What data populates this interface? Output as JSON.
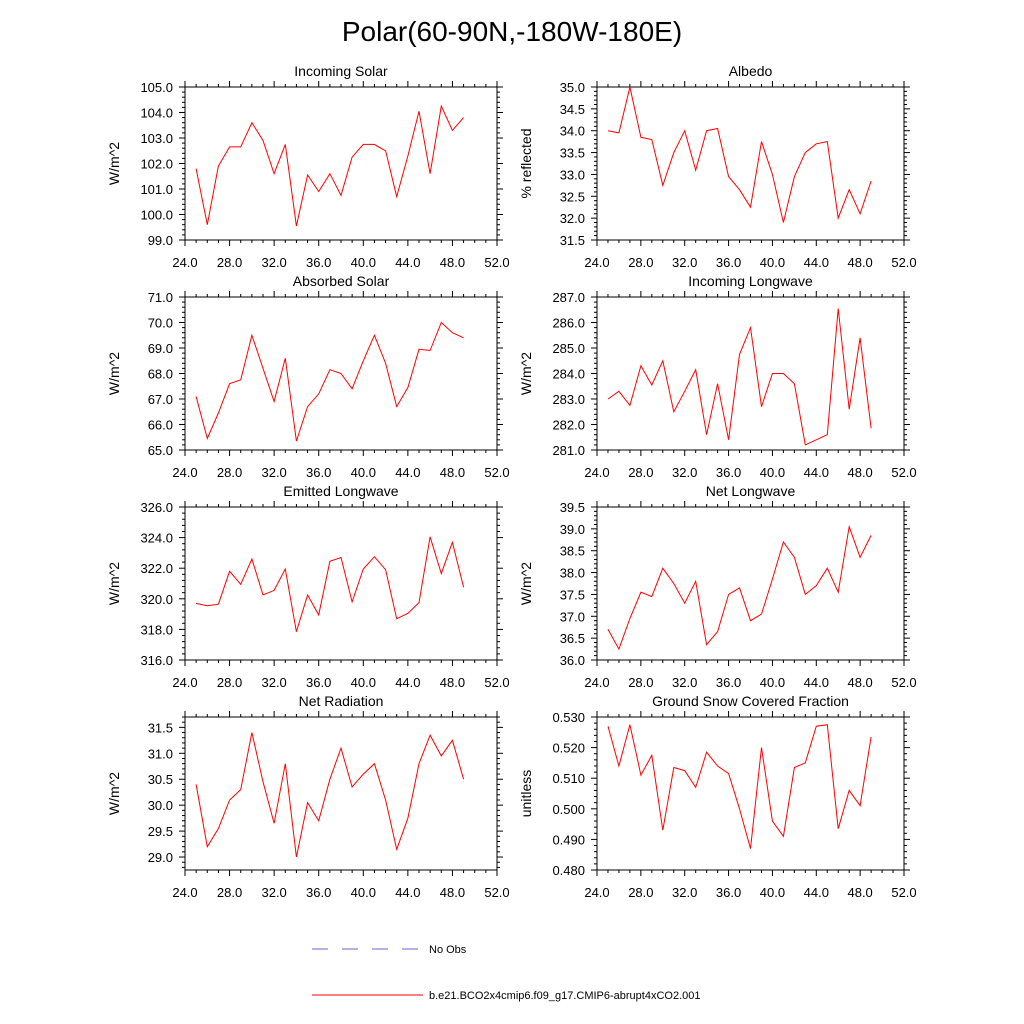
{
  "figure": {
    "title": "Polar(60-90N,-180W-180E)",
    "legend": [
      {
        "label": "No Obs",
        "color": "#6666cc",
        "dash": "dashed"
      },
      {
        "label": "b.e21.BCO2x4cmip6.f09_g17.CMIP6-abrupt4xCO2.001",
        "color": "#ff0000",
        "dash": "solid"
      }
    ],
    "series_color": "#ff0000"
  },
  "chart_data": [
    {
      "id": "incoming-solar",
      "type": "line",
      "title": "Incoming Solar",
      "ylabel": "W/m^2",
      "xlabel": "",
      "xlim": [
        24,
        52
      ],
      "ylim": [
        99,
        105
      ],
      "xticks": [
        24,
        28,
        32,
        36,
        40,
        44,
        48,
        52
      ],
      "xtick_labels": [
        "24.0",
        "28.0",
        "32.0",
        "36.0",
        "40.0",
        "44.0",
        "48.0",
        "52.0"
      ],
      "yticks": [
        99,
        100,
        101,
        102,
        103,
        104,
        105
      ],
      "ytick_labels": [
        "99.0",
        "100.0",
        "101.0",
        "102.0",
        "103.0",
        "104.0",
        "105.0"
      ],
      "series": [
        {
          "name": "b.e21.BCO2x4cmip6.f09_g17.CMIP6-abrupt4xCO2.001",
          "x": [
            25,
            26,
            27,
            28,
            29,
            30,
            31,
            32,
            33,
            34,
            35,
            36,
            37,
            38,
            39,
            40,
            41,
            42,
            43,
            44,
            45,
            46,
            47,
            48,
            49
          ],
          "y": [
            101.8,
            99.6,
            101.9,
            102.65,
            102.65,
            103.6,
            102.9,
            101.6,
            102.75,
            99.55,
            101.55,
            100.9,
            101.6,
            100.75,
            102.25,
            102.75,
            102.75,
            102.5,
            100.7,
            102.3,
            104.05,
            101.6,
            104.25,
            103.3,
            103.8
          ]
        }
      ]
    },
    {
      "id": "albedo",
      "type": "line",
      "title": "Albedo",
      "ylabel": "% reflected",
      "xlabel": "",
      "xlim": [
        24,
        52
      ],
      "ylim": [
        31.5,
        35.0
      ],
      "xticks": [
        24,
        28,
        32,
        36,
        40,
        44,
        48,
        52
      ],
      "xtick_labels": [
        "24.0",
        "28.0",
        "32.0",
        "36.0",
        "40.0",
        "44.0",
        "48.0",
        "52.0"
      ],
      "yticks": [
        31.5,
        32.0,
        32.5,
        33.0,
        33.5,
        34.0,
        34.5,
        35.0
      ],
      "ytick_labels": [
        "31.5",
        "32.0",
        "32.5",
        "33.0",
        "33.5",
        "34.0",
        "34.5",
        "35.0"
      ],
      "series": [
        {
          "name": "b.e21.BCO2x4cmip6.f09_g17.CMIP6-abrupt4xCO2.001",
          "x": [
            25,
            26,
            27,
            28,
            29,
            30,
            31,
            32,
            33,
            34,
            35,
            36,
            37,
            38,
            39,
            40,
            41,
            42,
            43,
            44,
            45,
            46,
            47,
            48,
            49
          ],
          "y": [
            34.0,
            33.95,
            35.0,
            33.85,
            33.8,
            32.75,
            33.5,
            34.0,
            33.1,
            34.0,
            34.05,
            32.95,
            32.65,
            32.25,
            33.75,
            33.0,
            31.9,
            32.95,
            33.5,
            33.7,
            33.75,
            32.0,
            32.65,
            32.1,
            32.85
          ]
        }
      ]
    },
    {
      "id": "absorbed-solar",
      "type": "line",
      "title": "Absorbed Solar",
      "ylabel": "W/m^2",
      "xlabel": "",
      "xlim": [
        24,
        52
      ],
      "ylim": [
        65,
        71
      ],
      "xticks": [
        24,
        28,
        32,
        36,
        40,
        44,
        48,
        52
      ],
      "xtick_labels": [
        "24.0",
        "28.0",
        "32.0",
        "36.0",
        "40.0",
        "44.0",
        "48.0",
        "52.0"
      ],
      "yticks": [
        65,
        66,
        67,
        68,
        69,
        70,
        71
      ],
      "ytick_labels": [
        "65.0",
        "66.0",
        "67.0",
        "68.0",
        "69.0",
        "70.0",
        "71.0"
      ],
      "series": [
        {
          "name": "b.e21.BCO2x4cmip6.f09_g17.CMIP6-abrupt4xCO2.001",
          "x": [
            25,
            26,
            27,
            28,
            29,
            30,
            31,
            32,
            33,
            34,
            35,
            36,
            37,
            38,
            39,
            40,
            41,
            42,
            43,
            44,
            45,
            46,
            47,
            48,
            49
          ],
          "y": [
            67.1,
            65.45,
            66.45,
            67.6,
            67.75,
            69.5,
            68.2,
            66.9,
            68.6,
            65.35,
            66.7,
            67.2,
            68.15,
            68.0,
            67.4,
            68.5,
            69.5,
            68.4,
            66.7,
            67.45,
            68.95,
            68.9,
            70.0,
            69.6,
            69.4
          ]
        }
      ]
    },
    {
      "id": "incoming-longwave",
      "type": "line",
      "title": "Incoming Longwave",
      "ylabel": "W/m^2",
      "xlabel": "",
      "xlim": [
        24,
        52
      ],
      "ylim": [
        281,
        287
      ],
      "xticks": [
        24,
        28,
        32,
        36,
        40,
        44,
        48,
        52
      ],
      "xtick_labels": [
        "24.0",
        "28.0",
        "32.0",
        "36.0",
        "40.0",
        "44.0",
        "48.0",
        "52.0"
      ],
      "yticks": [
        281,
        282,
        283,
        284,
        285,
        286,
        287
      ],
      "ytick_labels": [
        "281.0",
        "282.0",
        "283.0",
        "284.0",
        "285.0",
        "286.0",
        "287.0"
      ],
      "series": [
        {
          "name": "b.e21.BCO2x4cmip6.f09_g17.CMIP6-abrupt4xCO2.001",
          "x": [
            25,
            26,
            27,
            28,
            29,
            30,
            31,
            32,
            33,
            34,
            35,
            36,
            37,
            38,
            39,
            40,
            41,
            42,
            43,
            44,
            45,
            46,
            47,
            48,
            49
          ],
          "y": [
            283.0,
            283.3,
            282.75,
            284.3,
            283.55,
            284.5,
            282.5,
            283.3,
            284.15,
            281.6,
            283.6,
            281.4,
            284.75,
            285.8,
            282.7,
            284.0,
            284.0,
            283.6,
            281.2,
            281.4,
            281.6,
            286.55,
            282.6,
            285.4,
            281.85
          ]
        }
      ]
    },
    {
      "id": "emitted-longwave",
      "type": "line",
      "title": "Emitted Longwave",
      "ylabel": "W/m^2",
      "xlabel": "",
      "xlim": [
        24,
        52
      ],
      "ylim": [
        316,
        326
      ],
      "xticks": [
        24,
        28,
        32,
        36,
        40,
        44,
        48,
        52
      ],
      "xtick_labels": [
        "24.0",
        "28.0",
        "32.0",
        "36.0",
        "40.0",
        "44.0",
        "48.0",
        "52.0"
      ],
      "yticks": [
        316,
        318,
        320,
        322,
        324,
        326
      ],
      "ytick_labels": [
        "316.0",
        "318.0",
        "320.0",
        "322.0",
        "324.0",
        "326.0"
      ],
      "series": [
        {
          "name": "b.e21.BCO2x4cmip6.f09_g17.CMIP6-abrupt4xCO2.001",
          "x": [
            25,
            26,
            27,
            28,
            29,
            30,
            31,
            32,
            33,
            34,
            35,
            36,
            37,
            38,
            39,
            40,
            41,
            42,
            43,
            44,
            45,
            46,
            47,
            48,
            49
          ],
          "y": [
            319.7,
            319.55,
            319.65,
            321.8,
            320.95,
            322.6,
            320.25,
            320.55,
            321.95,
            317.85,
            320.25,
            318.95,
            322.45,
            322.7,
            319.8,
            321.95,
            322.75,
            321.9,
            318.7,
            319.05,
            319.75,
            324.05,
            321.65,
            323.7,
            320.75
          ]
        }
      ]
    },
    {
      "id": "net-longwave",
      "type": "line",
      "title": "Net Longwave",
      "ylabel": "W/m^2",
      "xlabel": "",
      "xlim": [
        24,
        52
      ],
      "ylim": [
        36.0,
        39.5
      ],
      "xticks": [
        24,
        28,
        32,
        36,
        40,
        44,
        48,
        52
      ],
      "xtick_labels": [
        "24.0",
        "28.0",
        "32.0",
        "36.0",
        "40.0",
        "44.0",
        "48.0",
        "52.0"
      ],
      "yticks": [
        36.0,
        36.5,
        37.0,
        37.5,
        38.0,
        38.5,
        39.0,
        39.5
      ],
      "ytick_labels": [
        "36.0",
        "36.5",
        "37.0",
        "37.5",
        "38.0",
        "38.5",
        "39.0",
        "39.5"
      ],
      "series": [
        {
          "name": "b.e21.BCO2x4cmip6.f09_g17.CMIP6-abrupt4xCO2.001",
          "x": [
            25,
            26,
            27,
            28,
            29,
            30,
            31,
            32,
            33,
            34,
            35,
            36,
            37,
            38,
            39,
            40,
            41,
            42,
            43,
            44,
            45,
            46,
            47,
            48,
            49
          ],
          "y": [
            36.7,
            36.25,
            36.95,
            37.55,
            37.45,
            38.1,
            37.75,
            37.3,
            37.8,
            36.35,
            36.65,
            37.5,
            37.65,
            36.9,
            37.05,
            37.85,
            38.7,
            38.35,
            37.5,
            37.7,
            38.1,
            37.55,
            39.05,
            38.35,
            38.85
          ]
        }
      ]
    },
    {
      "id": "net-radiation",
      "type": "line",
      "title": "Net Radiation",
      "ylabel": "W/m^2",
      "xlabel": "",
      "xlim": [
        24,
        52
      ],
      "ylim": [
        28.75,
        31.7
      ],
      "xticks": [
        24,
        28,
        32,
        36,
        40,
        44,
        48,
        52
      ],
      "xtick_labels": [
        "24.0",
        "28.0",
        "32.0",
        "36.0",
        "40.0",
        "44.0",
        "48.0",
        "52.0"
      ],
      "yticks": [
        29.0,
        29.5,
        30.0,
        30.5,
        31.0,
        31.5
      ],
      "ytick_labels": [
        "29.0",
        "29.5",
        "30.0",
        "30.5",
        "31.0",
        "31.5"
      ],
      "series": [
        {
          "name": "b.e21.BCO2x4cmip6.f09_g17.CMIP6-abrupt4xCO2.001",
          "x": [
            25,
            26,
            27,
            28,
            29,
            30,
            31,
            32,
            33,
            34,
            35,
            36,
            37,
            38,
            39,
            40,
            41,
            42,
            43,
            44,
            45,
            46,
            47,
            48,
            49
          ],
          "y": [
            30.4,
            29.2,
            29.55,
            30.1,
            30.3,
            31.4,
            30.45,
            29.65,
            30.8,
            29.0,
            30.05,
            29.7,
            30.5,
            31.1,
            30.35,
            30.6,
            30.8,
            30.1,
            29.15,
            29.75,
            30.8,
            31.35,
            30.95,
            31.25,
            30.5
          ]
        }
      ]
    },
    {
      "id": "ground-snow-covered-fraction",
      "type": "line",
      "title": "Ground Snow Covered Fraction",
      "ylabel": "unitless",
      "xlabel": "",
      "xlim": [
        24,
        52
      ],
      "ylim": [
        0.48,
        0.53
      ],
      "xticks": [
        24,
        28,
        32,
        36,
        40,
        44,
        48,
        52
      ],
      "xtick_labels": [
        "24.0",
        "28.0",
        "32.0",
        "36.0",
        "40.0",
        "44.0",
        "48.0",
        "52.0"
      ],
      "yticks": [
        0.48,
        0.49,
        0.5,
        0.51,
        0.52,
        0.53
      ],
      "ytick_labels": [
        "0.480",
        "0.490",
        "0.500",
        "0.510",
        "0.520",
        "0.530"
      ],
      "series": [
        {
          "name": "b.e21.BCO2x4cmip6.f09_g17.CMIP6-abrupt4xCO2.001",
          "x": [
            25,
            26,
            27,
            28,
            29,
            30,
            31,
            32,
            33,
            34,
            35,
            36,
            37,
            38,
            39,
            40,
            41,
            42,
            43,
            44,
            45,
            46,
            47,
            48,
            49
          ],
          "y": [
            0.527,
            0.514,
            0.5275,
            0.511,
            0.5175,
            0.493,
            0.5135,
            0.5125,
            0.507,
            0.5185,
            0.514,
            0.5115,
            0.5,
            0.487,
            0.52,
            0.496,
            0.491,
            0.5135,
            0.515,
            0.527,
            0.5275,
            0.4935,
            0.506,
            0.501,
            0.5235
          ]
        }
      ]
    }
  ]
}
